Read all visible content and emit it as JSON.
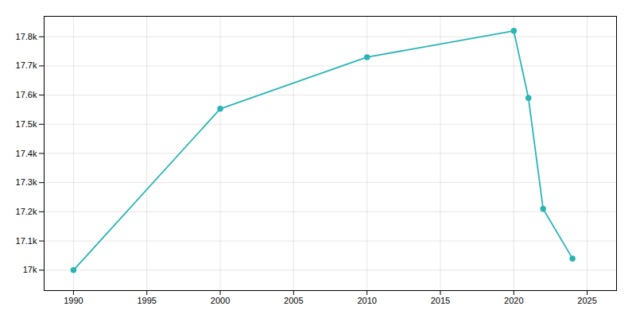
{
  "chart_data": {
    "type": "line",
    "x": [
      1990,
      2000,
      2010,
      2020,
      2021,
      2022,
      2024
    ],
    "values": [
      17000,
      17553,
      17730,
      17820,
      17590,
      17210,
      17040
    ],
    "color": "#2ab5b5",
    "marker": "circle",
    "xlim": [
      1988,
      2027
    ],
    "xticks": [
      1990,
      1995,
      2000,
      2005,
      2010,
      2015,
      2020,
      2025
    ],
    "ylim": [
      16930,
      17870
    ],
    "yticks": [
      {
        "value": 17000,
        "label": "17k"
      },
      {
        "value": 17100,
        "label": "17.1k"
      },
      {
        "value": 17200,
        "label": "17.2k"
      },
      {
        "value": 17300,
        "label": "17.3k"
      },
      {
        "value": 17400,
        "label": "17.4k"
      },
      {
        "value": 17500,
        "label": "17.5k"
      },
      {
        "value": 17600,
        "label": "17.6k"
      },
      {
        "value": 17700,
        "label": "17.7k"
      },
      {
        "value": 17800,
        "label": "17.8k"
      }
    ],
    "grid": true
  }
}
